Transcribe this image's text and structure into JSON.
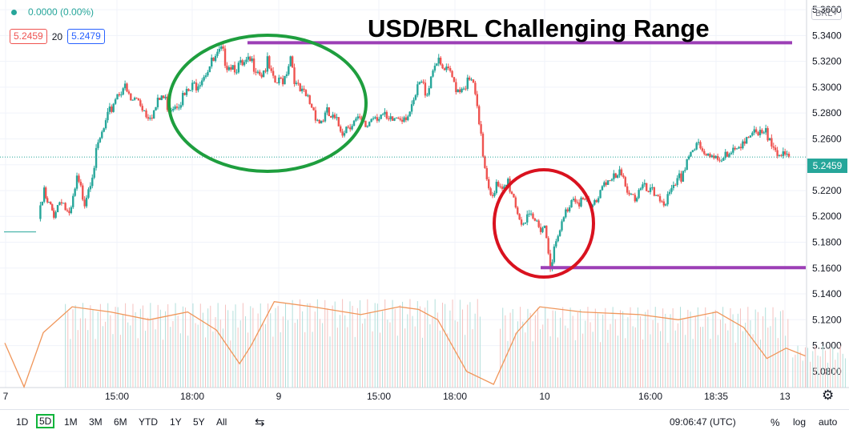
{
  "legend": {
    "change": "0.0000 (0.00%)"
  },
  "values": {
    "bid": "5.2459",
    "spread": "20",
    "ask": "5.2479"
  },
  "title": "USD/BRL Challenging Range",
  "symbol_button": "BRL˅",
  "current_price_label": "5.2459",
  "colors": {
    "up": "#26a69a",
    "down": "#ef5350",
    "range_line": "#9c3fb6",
    "circle_green": "#1e9e3e",
    "circle_red": "#d9121f",
    "ma_line": "#f0965a"
  },
  "chart_data": {
    "type": "candlestick",
    "title": "USD/BRL Challenging Range",
    "y_axis": {
      "ticks": [
        "5.3600",
        "5.3400",
        "5.3200",
        "5.3000",
        "5.2800",
        "5.2600",
        "5.2400",
        "5.2200",
        "5.2000",
        "5.1800",
        "5.1600",
        "5.1400",
        "5.1200",
        "5.1000",
        "5.0800"
      ],
      "range": [
        5.0675,
        5.3675
      ]
    },
    "x_axis": {
      "ticks": [
        "7",
        "15:00",
        "18:00",
        "9",
        "15:00",
        "18:00",
        "10",
        "16:00",
        "18:35",
        "13"
      ]
    },
    "current_price": 5.2459,
    "resistance": 5.3344,
    "support": 5.1603,
    "ohlc_path": [
      [
        0,
        5.198
      ],
      [
        3,
        5.222
      ],
      [
        8,
        5.206
      ],
      [
        12,
        5.218
      ],
      [
        16,
        5.2
      ],
      [
        20,
        5.23
      ],
      [
        24,
        5.216
      ],
      [
        28,
        5.238
      ],
      [
        32,
        5.262
      ],
      [
        36,
        5.278
      ],
      [
        40,
        5.296
      ],
      [
        44,
        5.304
      ],
      [
        48,
        5.292
      ],
      [
        52,
        5.294
      ],
      [
        56,
        5.283
      ],
      [
        60,
        5.284
      ],
      [
        64,
        5.296
      ],
      [
        68,
        5.288
      ],
      [
        72,
        5.292
      ],
      [
        76,
        5.296
      ],
      [
        80,
        5.302
      ],
      [
        84,
        5.31
      ],
      [
        88,
        5.318
      ],
      [
        92,
        5.324
      ],
      [
        95,
        5.33
      ],
      [
        98,
        5.322
      ],
      [
        102,
        5.32
      ],
      [
        106,
        5.318
      ],
      [
        110,
        5.322
      ],
      [
        113,
        5.32
      ],
      [
        116,
        5.314
      ],
      [
        119,
        5.321
      ],
      [
        122,
        5.306
      ],
      [
        125,
        5.306
      ],
      [
        128,
        5.312
      ],
      [
        131,
        5.328
      ],
      [
        134,
        5.303
      ],
      [
        137,
        5.297
      ],
      [
        140,
        5.294
      ],
      [
        143,
        5.286
      ],
      [
        146,
        5.276
      ],
      [
        150,
        5.282
      ],
      [
        154,
        5.276
      ],
      [
        158,
        5.27
      ],
      [
        162,
        5.276
      ],
      [
        166,
        5.276
      ],
      [
        170,
        5.272
      ],
      [
        174,
        5.282
      ],
      [
        178,
        5.282
      ],
      [
        182,
        5.274
      ],
      [
        186,
        5.28
      ],
      [
        190,
        5.282
      ],
      [
        194,
        5.284
      ],
      [
        198,
        5.306
      ],
      [
        202,
        5.3
      ],
      [
        206,
        5.324
      ],
      [
        210,
        5.316
      ],
      [
        214,
        5.312
      ],
      [
        218,
        5.302
      ],
      [
        222,
        5.306
      ],
      [
        226,
        5.306
      ],
      [
        229,
        5.272
      ],
      [
        232,
        5.242
      ],
      [
        235,
        5.222
      ],
      [
        238,
        5.226
      ],
      [
        241,
        5.22
      ],
      [
        244,
        5.23
      ],
      [
        247,
        5.218
      ],
      [
        250,
        5.202
      ],
      [
        253,
        5.198
      ],
      [
        256,
        5.2
      ],
      [
        260,
        5.197
      ],
      [
        263,
        5.196
      ],
      [
        266,
        5.168
      ],
      [
        269,
        5.18
      ],
      [
        272,
        5.196
      ],
      [
        275,
        5.21
      ],
      [
        278,
        5.22
      ],
      [
        281,
        5.216
      ],
      [
        284,
        5.214
      ],
      [
        287,
        5.208
      ],
      [
        290,
        5.216
      ],
      [
        294,
        5.232
      ],
      [
        298,
        5.23
      ],
      [
        302,
        5.234
      ],
      [
        306,
        5.226
      ],
      [
        310,
        5.218
      ],
      [
        314,
        5.224
      ],
      [
        318,
        5.22
      ],
      [
        322,
        5.22
      ],
      [
        326,
        5.214
      ],
      [
        330,
        5.222
      ],
      [
        334,
        5.234
      ],
      [
        338,
        5.252
      ],
      [
        342,
        5.258
      ],
      [
        346,
        5.248
      ],
      [
        350,
        5.252
      ],
      [
        354,
        5.25
      ],
      [
        358,
        5.248
      ],
      [
        362,
        5.252
      ],
      [
        366,
        5.264
      ],
      [
        370,
        5.266
      ],
      [
        374,
        5.264
      ],
      [
        378,
        5.266
      ],
      [
        382,
        5.262
      ],
      [
        386,
        5.248
      ],
      [
        390,
        5.246
      ]
    ],
    "volume_ma_path": [
      [
        0,
        5.102
      ],
      [
        10,
        5.068
      ],
      [
        20,
        5.11
      ],
      [
        35,
        5.13
      ],
      [
        55,
        5.126
      ],
      [
        75,
        5.12
      ],
      [
        95,
        5.126
      ],
      [
        110,
        5.112
      ],
      [
        122,
        5.086
      ],
      [
        128,
        5.1
      ],
      [
        140,
        5.134
      ],
      [
        160,
        5.13
      ],
      [
        185,
        5.124
      ],
      [
        205,
        5.13
      ],
      [
        215,
        5.128
      ],
      [
        225,
        5.12
      ],
      [
        240,
        5.08
      ],
      [
        254,
        5.07
      ],
      [
        266,
        5.11
      ],
      [
        278,
        5.13
      ],
      [
        300,
        5.126
      ],
      [
        330,
        5.124
      ],
      [
        350,
        5.12
      ],
      [
        370,
        5.126
      ],
      [
        384,
        5.114
      ],
      [
        396,
        5.09
      ],
      [
        406,
        5.098
      ],
      [
        416,
        5.092
      ]
    ],
    "volume_blocks": [
      {
        "x_from": 14,
        "x_to": 130,
        "height": 5.133
      },
      {
        "x_from": 132,
        "x_to": 230,
        "height": 5.136
      },
      {
        "x_from": 240,
        "x_to": 390,
        "height": 5.13
      },
      {
        "x_from": 392,
        "x_to": 420,
        "height": 5.1
      }
    ],
    "annotations": [
      {
        "type": "ellipse",
        "color": "green",
        "label": ""
      },
      {
        "type": "ellipse",
        "color": "red",
        "label": ""
      },
      {
        "type": "hline",
        "value": 5.3344,
        "label": ""
      },
      {
        "type": "hline",
        "value": 5.1603,
        "label": ""
      }
    ]
  },
  "bottom_bar": {
    "ranges": [
      "1D",
      "5D",
      "1M",
      "3M",
      "6M",
      "YTD",
      "1Y",
      "5Y",
      "All"
    ],
    "time": "09:06:47 (UTC)",
    "percent": "%",
    "log": "log",
    "auto": "auto"
  }
}
